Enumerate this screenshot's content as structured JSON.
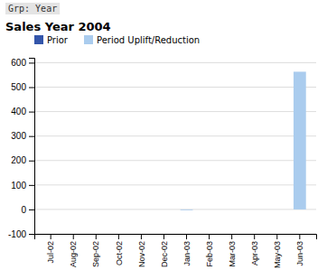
{
  "chart_data": {
    "type": "bar",
    "title": "Sales Year 2004",
    "subtitle": "Grp: Year",
    "categories": [
      "Jul-02",
      "Aug-02",
      "Sep-02",
      "Oct-02",
      "Nov-02",
      "Dec-02",
      "Jan-03",
      "Feb-03",
      "Mar-03",
      "Apr-03",
      "May-03",
      "Jun-03"
    ],
    "series": [
      {
        "name": "Prior",
        "color": "#3355aa",
        "values": [
          null,
          null,
          null,
          null,
          null,
          null,
          null,
          null,
          null,
          null,
          null,
          null
        ]
      },
      {
        "name": "Period Uplift/Reduction",
        "color": "#aaccee",
        "values": [
          0,
          0,
          0,
          0,
          0,
          0,
          -3,
          0,
          0,
          0,
          0,
          563
        ]
      }
    ],
    "ylim": [
      -100,
      620
    ],
    "yticks": [
      -100,
      0,
      100,
      200,
      300,
      400,
      500,
      600
    ],
    "grid": true,
    "legend": "top"
  }
}
